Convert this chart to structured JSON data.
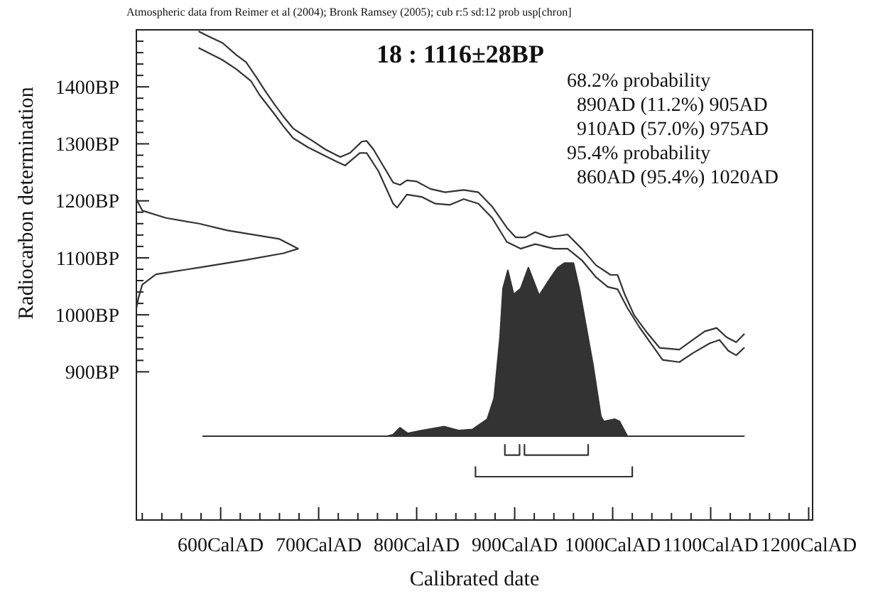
{
  "chart_data": {
    "type": "line",
    "title": "18 : 1116±28BP",
    "xlabel": "Calibrated date",
    "ylabel": "Radiocarbon determination",
    "annotations": [
      "Atmospheric data from Reimer et al (2004); Bronk Ramsey (2005); cub r:5 sd:12 prob usp[chron]",
      "68.2% probability",
      "  890AD (11.2%) 905AD",
      "  910AD (57.0%) 975AD",
      "95.4% probability",
      "  860AD (95.4%) 1020AD"
    ],
    "xlim": [
      514,
      1204
    ],
    "ylim": [
      640,
      1500
    ],
    "xticks": [
      {
        "value": 520,
        "label": null
      },
      {
        "value": 540,
        "label": null
      },
      {
        "value": 560,
        "label": null
      },
      {
        "value": 580,
        "label": null
      },
      {
        "value": 600,
        "label": "600CalAD"
      },
      {
        "value": 620,
        "label": null
      },
      {
        "value": 640,
        "label": null
      },
      {
        "value": 660,
        "label": null
      },
      {
        "value": 680,
        "label": null
      },
      {
        "value": 700,
        "label": "700CalAD"
      },
      {
        "value": 720,
        "label": null
      },
      {
        "value": 740,
        "label": null
      },
      {
        "value": 760,
        "label": null
      },
      {
        "value": 780,
        "label": null
      },
      {
        "value": 800,
        "label": "800CalAD"
      },
      {
        "value": 820,
        "label": null
      },
      {
        "value": 840,
        "label": null
      },
      {
        "value": 860,
        "label": null
      },
      {
        "value": 880,
        "label": null
      },
      {
        "value": 900,
        "label": "900CalAD"
      },
      {
        "value": 920,
        "label": null
      },
      {
        "value": 940,
        "label": null
      },
      {
        "value": 960,
        "label": null
      },
      {
        "value": 980,
        "label": null
      },
      {
        "value": 1000,
        "label": "1000CalAD"
      },
      {
        "value": 1020,
        "label": null
      },
      {
        "value": 1040,
        "label": null
      },
      {
        "value": 1060,
        "label": null
      },
      {
        "value": 1080,
        "label": null
      },
      {
        "value": 1100,
        "label": "1100CalAD"
      },
      {
        "value": 1120,
        "label": null
      },
      {
        "value": 1140,
        "label": null
      },
      {
        "value": 1160,
        "label": null
      },
      {
        "value": 1180,
        "label": null
      },
      {
        "value": 1200,
        "label": "1200CalAD"
      }
    ],
    "yticks": [
      {
        "value": 900,
        "label": "900BP"
      },
      {
        "value": 920,
        "label": null
      },
      {
        "value": 940,
        "label": null
      },
      {
        "value": 960,
        "label": null
      },
      {
        "value": 980,
        "label": null
      },
      {
        "value": 1000,
        "label": "1000BP"
      },
      {
        "value": 1020,
        "label": null
      },
      {
        "value": 1040,
        "label": null
      },
      {
        "value": 1060,
        "label": null
      },
      {
        "value": 1080,
        "label": null
      },
      {
        "value": 1100,
        "label": "1100BP"
      },
      {
        "value": 1120,
        "label": null
      },
      {
        "value": 1140,
        "label": null
      },
      {
        "value": 1160,
        "label": null
      },
      {
        "value": 1180,
        "label": null
      },
      {
        "value": 1200,
        "label": "1200BP"
      },
      {
        "value": 1220,
        "label": null
      },
      {
        "value": 1240,
        "label": null
      },
      {
        "value": 1260,
        "label": null
      },
      {
        "value": 1280,
        "label": null
      },
      {
        "value": 1300,
        "label": "1300BP"
      },
      {
        "value": 1320,
        "label": null
      },
      {
        "value": 1340,
        "label": null
      },
      {
        "value": 1360,
        "label": null
      },
      {
        "value": 1380,
        "label": null
      },
      {
        "value": 1400,
        "label": "1400BP"
      },
      {
        "value": 1420,
        "label": null
      },
      {
        "value": 1440,
        "label": null
      },
      {
        "value": 1460,
        "label": null
      },
      {
        "value": 1480,
        "label": null
      }
    ],
    "series": [
      {
        "color": "#333333",
        "x": [
          578,
          587,
          602,
          616,
          626,
          636,
          645,
          655,
          664,
          674,
          681,
          693,
          707,
          722,
          732,
          744,
          749,
          756,
          766,
          776,
          783,
          790,
          800,
          814,
          829,
          848,
          863,
          877,
          892,
          901,
          911,
          921,
          935,
          954,
          969,
          983,
          998,
          1005,
          1012,
          1022,
          1034,
          1048,
          1068,
          1080,
          1094,
          1106,
          1116,
          1126,
          1134
        ],
        "values": [
          1497,
          1489,
          1477,
          1456,
          1443,
          1418,
          1394,
          1369,
          1348,
          1327,
          1319,
          1306,
          1290,
          1277,
          1284,
          1304,
          1305,
          1290,
          1261,
          1232,
          1228,
          1236,
          1234,
          1221,
          1215,
          1219,
          1215,
          1190,
          1153,
          1136,
          1136,
          1145,
          1136,
          1141,
          1115,
          1087,
          1070,
          1070,
          1037,
          999,
          971,
          942,
          939,
          954,
          971,
          977,
          961,
          952,
          966
        ]
      },
      {
        "color": "#333333",
        "x": [
          578,
          587,
          602,
          616,
          631,
          640,
          655,
          664,
          674,
          689,
          703,
          718,
          727,
          742,
          749,
          761,
          776,
          780,
          790,
          805,
          819,
          834,
          848,
          863,
          877,
          892,
          906,
          921,
          940,
          954,
          969,
          983,
          995,
          1005,
          1015,
          1027,
          1039,
          1051,
          1068,
          1082,
          1099,
          1109,
          1118,
          1126,
          1134
        ],
        "values": [
          1468,
          1460,
          1447,
          1431,
          1410,
          1385,
          1352,
          1331,
          1310,
          1294,
          1282,
          1269,
          1262,
          1284,
          1284,
          1252,
          1195,
          1188,
          1211,
          1207,
          1195,
          1193,
          1203,
          1195,
          1170,
          1128,
          1116,
          1124,
          1116,
          1116,
          1095,
          1066,
          1049,
          1045,
          1012,
          979,
          950,
          921,
          917,
          933,
          950,
          956,
          937,
          929,
          942
        ]
      },
      {
        "color": "#333333",
        "x": [
          514,
          520,
          544,
          578,
          607,
          660,
          679,
          664,
          625,
          578,
          534,
          520,
          516,
          514
        ],
        "values": [
          1203,
          1183,
          1170,
          1160,
          1148,
          1133,
          1116,
          1108,
          1096,
          1083,
          1071,
          1053,
          1029,
          1011
        ]
      },
      {
        "type": "area",
        "color": "#333333",
        "x": [
          582,
          770,
          776,
          783,
          791,
          805,
          828,
          843,
          857,
          872,
          879,
          885,
          888,
          893,
          899,
          906,
          914,
          925,
          935,
          944,
          951,
          960,
          966,
          973,
          980,
          988,
          991,
          1002,
          1007,
          1015,
          1134
        ],
        "values": [
          787,
          787,
          790,
          802,
          792,
          797,
          804,
          797,
          799,
          817,
          854,
          961,
          1046,
          1078,
          1036,
          1046,
          1083,
          1034,
          1061,
          1083,
          1091,
          1091,
          1046,
          979,
          912,
          822,
          813,
          817,
          813,
          787,
          787
        ]
      },
      {
        "color": "#333333",
        "x": [
          890,
          890,
          905,
          905
        ],
        "values": [
          772,
          754,
          754,
          772
        ]
      },
      {
        "color": "#333333",
        "x": [
          910,
          910,
          975,
          975
        ],
        "values": [
          772,
          754,
          754,
          772
        ]
      },
      {
        "color": "#333333",
        "x": [
          860,
          860,
          1020,
          1020
        ],
        "values": [
          733,
          716,
          716,
          733
        ]
      }
    ]
  }
}
